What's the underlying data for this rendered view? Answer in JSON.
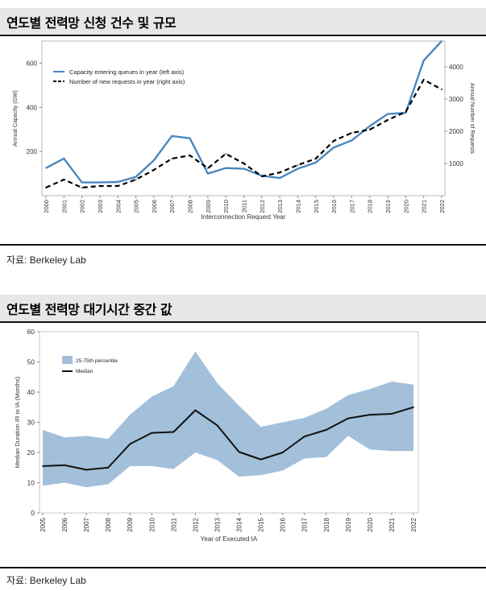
{
  "sections": [
    {
      "title": "연도별 전력망 신청 건수 및 규모",
      "source": "자료: Berkeley Lab",
      "chart_data": {
        "type": "line",
        "title": "",
        "xlabel": "Interconnection Request Year",
        "ylabel": "Annual Capacity (GW)",
        "y2label": "Annual Number of Requests",
        "categories": [
          "2000",
          "2001",
          "2002",
          "2003",
          "2004",
          "2005",
          "2006",
          "2007",
          "2008",
          "2009",
          "2010",
          "2011",
          "2012",
          "2013",
          "2014",
          "2015",
          "2016",
          "2017",
          "2018",
          "2019",
          "2020",
          "2021",
          "2022"
        ],
        "ylim": [
          0,
          700
        ],
        "yticks": [
          200,
          400,
          600
        ],
        "y2lim": [
          0,
          4800
        ],
        "y2ticks": [
          1000,
          2000,
          3000,
          4000
        ],
        "legend_position": "top-left",
        "series": [
          {
            "name": "Capacity entering queues in year (left axis)",
            "axis": "left",
            "color": "#4a88c0",
            "style": "solid",
            "values": [
              125,
              168,
              60,
              60,
              62,
              85,
              160,
              270,
              260,
              100,
              125,
              122,
              90,
              80,
              122,
              150,
              218,
              250,
              315,
              370,
              375,
              612,
              700
            ]
          },
          {
            "name": "Number of new requests in year (right axis)",
            "axis": "right",
            "color": "#000000",
            "style": "dashed",
            "values": [
              250,
              500,
              250,
              300,
              300,
              500,
              800,
              1150,
              1250,
              850,
              1300,
              1000,
              600,
              720,
              950,
              1150,
              1700,
              1950,
              2050,
              2350,
              2600,
              3600,
              3300
            ]
          }
        ]
      }
    },
    {
      "title": "연도별 전력망 대기시간 중간 값",
      "source": "자료: Berkeley Lab",
      "chart_data": {
        "type": "area",
        "title": "",
        "xlabel": "Year of Executed IA",
        "ylabel": "Median Duration IR to IA (Months)",
        "categories": [
          "2005",
          "2006",
          "2007",
          "2008",
          "2009",
          "2010",
          "2011",
          "2012",
          "2013",
          "2014",
          "2015",
          "2016",
          "2017",
          "2018",
          "2019",
          "2020",
          "2021",
          "2022"
        ],
        "ylim": [
          0,
          60
        ],
        "yticks": [
          0,
          10,
          20,
          30,
          40,
          50,
          60
        ],
        "legend_position": "top-left",
        "band": {
          "name": "25-75th percentile",
          "color": "#a3c0da",
          "lower": [
            9,
            10,
            8.5,
            9.5,
            15.5,
            15.5,
            14.5,
            20,
            17.5,
            12,
            12.5,
            14,
            18,
            18.5,
            25.5,
            21,
            20.5,
            20.5
          ],
          "upper": [
            27.5,
            25,
            25.5,
            24.5,
            32.5,
            38.5,
            42,
            53.5,
            43,
            35.5,
            28.5,
            30,
            31.5,
            34.5,
            39,
            41,
            43.5,
            42.5
          ]
        },
        "series": [
          {
            "name": "Median",
            "color": "#111111",
            "values": [
              15.5,
              15.8,
              14.3,
              15,
              22.8,
              26.5,
              26.8,
              34,
              29,
              20.2,
              17.7,
              20,
              25.3,
              27.5,
              31.3,
              32.5,
              32.8,
              35
            ]
          }
        ]
      }
    }
  ]
}
